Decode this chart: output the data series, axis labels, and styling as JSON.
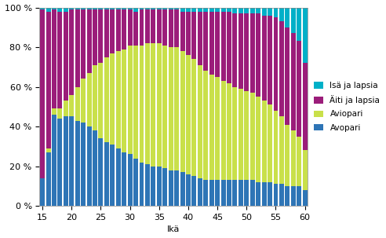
{
  "ages": [
    15,
    16,
    17,
    18,
    19,
    20,
    21,
    22,
    23,
    24,
    25,
    26,
    27,
    28,
    29,
    30,
    31,
    32,
    33,
    34,
    35,
    36,
    37,
    38,
    39,
    40,
    41,
    42,
    43,
    44,
    45,
    46,
    47,
    48,
    49,
    50,
    51,
    52,
    53,
    54,
    55,
    56,
    57,
    58,
    59,
    60
  ],
  "avopari": [
    14,
    27,
    46,
    44,
    45,
    45,
    43,
    42,
    40,
    38,
    34,
    32,
    31,
    29,
    27,
    26,
    24,
    22,
    21,
    20,
    20,
    19,
    18,
    18,
    17,
    16,
    15,
    14,
    13,
    13,
    13,
    13,
    13,
    13,
    13,
    13,
    13,
    12,
    12,
    12,
    11,
    11,
    10,
    10,
    10,
    8
  ],
  "aviopari": [
    0,
    2,
    3,
    5,
    8,
    11,
    17,
    22,
    27,
    33,
    38,
    43,
    46,
    49,
    52,
    55,
    57,
    59,
    61,
    62,
    62,
    62,
    62,
    62,
    61,
    60,
    59,
    57,
    55,
    53,
    52,
    50,
    49,
    47,
    46,
    45,
    44,
    43,
    41,
    39,
    37,
    34,
    31,
    28,
    25,
    20
  ],
  "aiti_ja_lapsia": [
    85,
    69,
    50,
    49,
    45,
    43,
    39,
    35,
    32,
    28,
    27,
    24,
    22,
    21,
    20,
    18,
    17,
    18,
    17,
    17,
    17,
    18,
    19,
    19,
    20,
    22,
    24,
    27,
    30,
    32,
    33,
    35,
    36,
    37,
    38,
    39,
    40,
    42,
    43,
    45,
    47,
    48,
    49,
    49,
    48,
    44
  ],
  "isa_ja_lapsia": [
    1,
    2,
    1,
    2,
    2,
    1,
    1,
    1,
    1,
    1,
    1,
    1,
    1,
    1,
    1,
    1,
    2,
    1,
    1,
    1,
    1,
    1,
    1,
    1,
    2,
    2,
    2,
    2,
    2,
    2,
    2,
    2,
    2,
    3,
    3,
    3,
    3,
    3,
    4,
    4,
    5,
    7,
    10,
    13,
    17,
    28
  ],
  "color_avopari": "#2E75B6",
  "color_aviopari": "#C9E04A",
  "color_aiti": "#9B1D7A",
  "color_isa": "#00B0C8",
  "label_isa": "Isä ja lapsia",
  "label_aiti": "Äiti ja lapsia",
  "label_aviopari": "Aviopari",
  "label_avopari": "Avopari",
  "xlabel": "Ikä",
  "ytick_labels": [
    "0 %",
    "20 %",
    "40 %",
    "60 %",
    "80 %",
    "100 %"
  ],
  "xtick_vals": [
    15,
    20,
    25,
    30,
    35,
    40,
    45,
    50,
    55,
    60
  ]
}
